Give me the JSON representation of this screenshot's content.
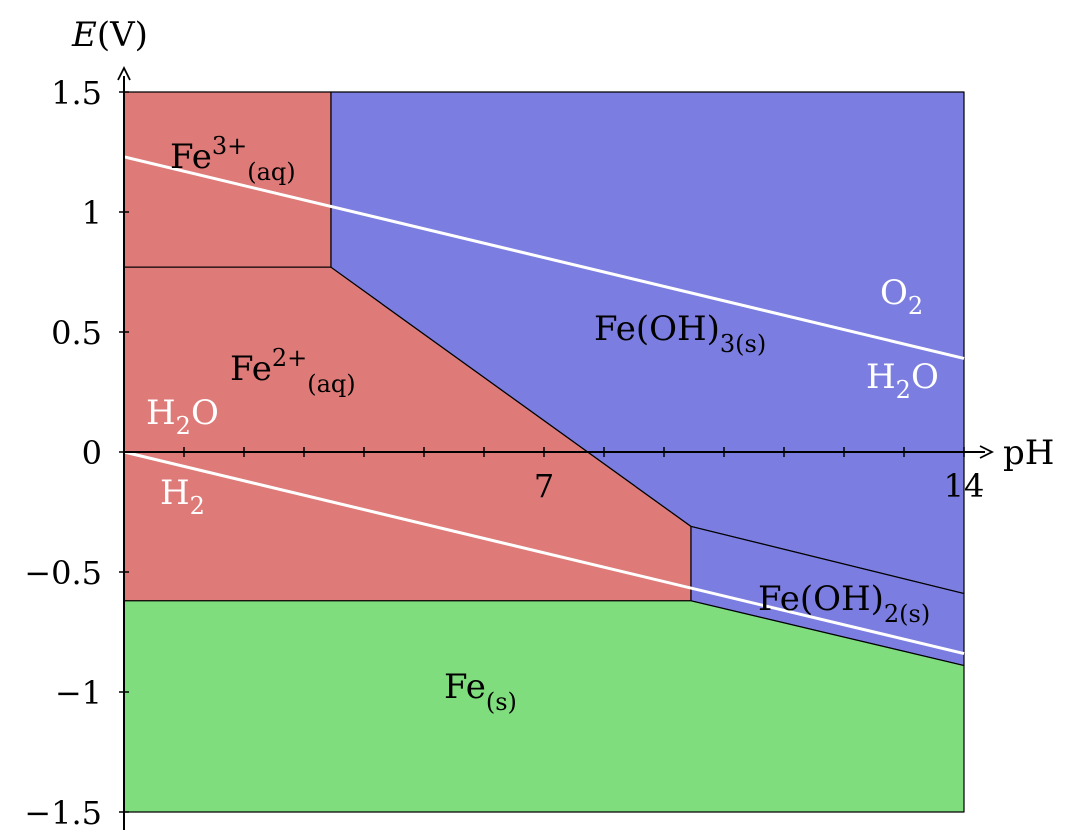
{
  "axes": {
    "x_label": "pH",
    "y_label_italic": "E",
    "y_label_unit": "(V)",
    "x_range": [
      0,
      14
    ],
    "y_range": [
      -1.5,
      1.5
    ],
    "x_tick_labels": [
      "7",
      "14"
    ],
    "y_tick_labels": [
      "1.5",
      "1",
      "0.5",
      "0",
      "−0.5",
      "−1",
      "−1.5"
    ]
  },
  "regions": [
    {
      "name": "Fe3+",
      "base": "Fe",
      "sup": "3+",
      "sub": "(aq)",
      "color": "#de7a78",
      "polygon": [
        [
          0,
          1.5
        ],
        [
          3.45,
          1.5
        ],
        [
          3.45,
          0.77
        ],
        [
          0,
          0.77
        ]
      ]
    },
    {
      "name": "Fe2+",
      "base": "Fe",
      "sup": "2+",
      "sub": "(aq)",
      "color": "#de7a78",
      "polygon": [
        [
          0,
          0.77
        ],
        [
          3.45,
          0.77
        ],
        [
          9.45,
          -0.31
        ],
        [
          9.45,
          -0.62
        ],
        [
          0,
          -0.62
        ]
      ]
    },
    {
      "name": "Fe(OH)3",
      "base": "Fe(OH)",
      "sub": "3(s)",
      "color": "#7b7ee0",
      "polygon": [
        [
          3.45,
          1.5
        ],
        [
          14,
          1.5
        ],
        [
          14,
          -0.59
        ],
        [
          9.45,
          -0.31
        ],
        [
          3.45,
          0.77
        ]
      ]
    },
    {
      "name": "Fe(OH)2",
      "base": "Fe(OH)",
      "sub": "2(s)",
      "color": "#7b7ee0",
      "polygon": [
        [
          9.45,
          -0.31
        ],
        [
          14,
          -0.59
        ],
        [
          14,
          -0.89
        ],
        [
          9.45,
          -0.62
        ]
      ]
    },
    {
      "name": "Fe(s)",
      "base": "Fe",
      "sub": "(s)",
      "color": "#7fdd7d",
      "polygon": [
        [
          0,
          -0.62
        ],
        [
          9.45,
          -0.62
        ],
        [
          14,
          -0.89
        ],
        [
          14,
          -1.5
        ],
        [
          0,
          -1.5
        ]
      ]
    }
  ],
  "water_lines": {
    "color": "#ffffff",
    "upper": {
      "from": [
        0,
        1.23
      ],
      "to": [
        14,
        0.39
      ]
    },
    "lower": {
      "from": [
        0,
        0
      ],
      "to": [
        14,
        -0.84
      ]
    }
  },
  "labels": {
    "fe3": {
      "base": "Fe",
      "sup": "3+",
      "sub": "(aq)"
    },
    "fe2": {
      "base": "Fe",
      "sup": "2+",
      "sub": "(aq)"
    },
    "feoh3": {
      "base": "Fe(OH)",
      "sub": "3(s)"
    },
    "feoh2": {
      "base": "Fe(OH)",
      "sub": "2(s)"
    },
    "fes": {
      "base": "Fe",
      "sub": "(s)"
    },
    "o2": {
      "base": "O",
      "sub": "2"
    },
    "h2o_right": {
      "base": "H",
      "sub": "2",
      "tail": "O"
    },
    "h2o_left": {
      "base": "H",
      "sub": "2",
      "tail": "O"
    },
    "h2": {
      "base": "H",
      "sub": "2"
    }
  }
}
